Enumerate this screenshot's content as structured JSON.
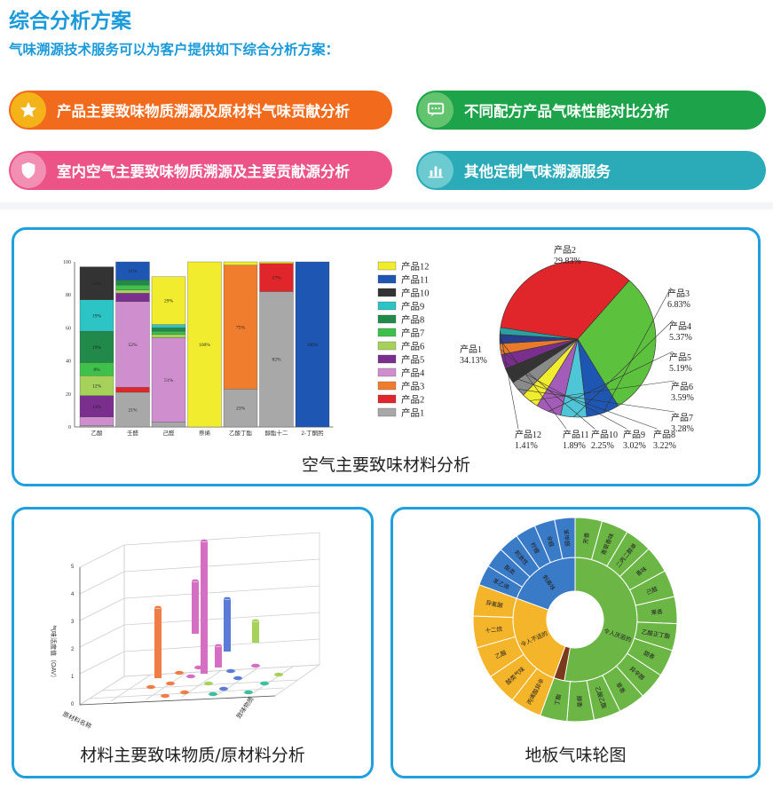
{
  "header": {
    "title": "综合分析方案",
    "subtitle": "气味溯源技术服务可以为客户提供如下综合分析方案："
  },
  "services": [
    {
      "label": "产品主要致味物质溯源及原材料气味贡献分析",
      "icon": "star-icon",
      "color": "#f26a1b",
      "icon_color": "#f5b31a"
    },
    {
      "label": "不同配方产品气味性能对比分析",
      "icon": "chat-icon",
      "color": "#1da34a",
      "icon_color": "#62c46f"
    },
    {
      "label": "室内空气主要致味物质溯源及主要贡献源分析",
      "icon": "shield-icon",
      "color": "#ec5487",
      "icon_color": "#f38fb2"
    },
    {
      "label": "其他定制气味溯源服务",
      "icon": "bar-chart-icon",
      "color": "#2aabb7",
      "icon_color": "#6ccad1"
    }
  ],
  "cards": {
    "air": {
      "caption": "空气主要致味材料分析"
    },
    "material": {
      "caption": "材料主要致味物质/原材料分析"
    },
    "wheel": {
      "caption": "地板气味轮图"
    }
  },
  "chart_data": [
    {
      "type": "bar",
      "stacked": true,
      "categories": [
        "乙酸",
        "壬醛",
        "己醛",
        "萘烯",
        "乙酸丁酯",
        "醇酯十二",
        "2-丁酮肟"
      ],
      "ylim": [
        0,
        100
      ],
      "yticks": [
        "0",
        "20",
        "40",
        "60",
        "80",
        "100"
      ],
      "legend": [
        "产品12",
        "产品11",
        "产品10",
        "产品9",
        "产品8",
        "产品7",
        "产品6",
        "产品5",
        "产品4",
        "产品3",
        "产品2",
        "产品1"
      ],
      "series": [
        {
          "name": "产品1",
          "color": "#a8a8a8",
          "values": [
            1,
            21,
            3,
            0,
            23,
            82,
            0
          ],
          "labels": [
            "",
            "21%",
            "",
            "",
            "23%",
            "82%",
            ""
          ]
        },
        {
          "name": "产品2",
          "color": "#e0262a",
          "values": [
            0,
            3,
            0,
            0,
            0,
            17,
            0
          ],
          "labels": [
            "",
            "",
            "",
            "",
            "",
            "17%",
            ""
          ]
        },
        {
          "name": "产品3",
          "color": "#f07c2e",
          "values": [
            0,
            0,
            0,
            0,
            75,
            0,
            0
          ],
          "labels": [
            "",
            "",
            "",
            "",
            "75%",
            "",
            ""
          ]
        },
        {
          "name": "产品4",
          "color": "#cf8fce",
          "values": [
            5,
            52,
            51,
            0,
            0,
            0,
            0
          ],
          "labels": [
            "",
            "52%",
            "51%",
            "",
            "",
            "",
            ""
          ]
        },
        {
          "name": "产品5",
          "color": "#7a2e8e",
          "values": [
            13,
            5,
            0,
            0,
            0,
            0,
            0
          ],
          "labels": [
            "13%",
            "",
            "",
            "",
            "",
            "",
            ""
          ]
        },
        {
          "name": "产品6",
          "color": "#a6d15a",
          "values": [
            12,
            2,
            2,
            0,
            0,
            0,
            0
          ],
          "labels": [
            "12%",
            "",
            "",
            "",
            "",
            "",
            ""
          ]
        },
        {
          "name": "产品7",
          "color": "#3ec04a",
          "values": [
            8,
            3,
            2,
            0,
            0,
            0,
            0
          ],
          "labels": [
            "8%",
            "",
            "",
            "",
            "",
            "",
            ""
          ]
        },
        {
          "name": "产品8",
          "color": "#218a4a",
          "values": [
            19,
            3,
            2,
            0,
            0,
            0,
            0
          ],
          "labels": [
            "19%",
            "",
            "",
            "",
            "",
            "",
            ""
          ]
        },
        {
          "name": "产品9",
          "color": "#2cc4c4",
          "values": [
            19,
            0,
            2,
            0,
            0,
            0,
            0
          ],
          "labels": [
            "19%",
            "",
            "",
            "",
            "",
            "",
            ""
          ]
        },
        {
          "name": "产品10",
          "color": "#333333",
          "values": [
            20,
            0,
            0,
            0,
            0,
            0,
            0
          ],
          "labels": [
            "20%",
            "",
            "",
            "",
            "",
            "",
            ""
          ]
        },
        {
          "name": "产品11",
          "color": "#1e56b4",
          "values": [
            0,
            11,
            0,
            0,
            0,
            0,
            100
          ],
          "labels": [
            "",
            "11%",
            "",
            "",
            "",
            "",
            "100%"
          ]
        },
        {
          "name": "产品12",
          "color": "#f2ec2e",
          "values": [
            0,
            0,
            29,
            100,
            2,
            1,
            0
          ],
          "labels": [
            "",
            "",
            "29%",
            "100%",
            "",
            "",
            ""
          ]
        }
      ]
    },
    {
      "type": "pie",
      "slices": [
        {
          "name": "产品1",
          "value": 34.13,
          "label": "34.13%",
          "color": "#e0262a"
        },
        {
          "name": "产品2",
          "value": 29.83,
          "label": "29.83%",
          "color": "#5cc13d"
        },
        {
          "name": "产品3",
          "value": 6.83,
          "label": "6.83%",
          "color": "#1e56b4"
        },
        {
          "name": "产品4",
          "value": 5.37,
          "label": "5.37%",
          "color": "#4ec6d8"
        },
        {
          "name": "产品5",
          "value": 5.19,
          "label": "5.19%",
          "color": "#a35cb8"
        },
        {
          "name": "产品6",
          "value": 3.59,
          "label": "3.59%",
          "color": "#f2ec2e"
        },
        {
          "name": "产品7",
          "value": 3.28,
          "label": "3.28%",
          "color": "#8a8a8a"
        },
        {
          "name": "产品8",
          "value": 3.22,
          "label": "3.22%",
          "color": "#343434"
        },
        {
          "name": "产品9",
          "value": 3.02,
          "label": "3.02%",
          "color": "#7a2e8e"
        },
        {
          "name": "产品10",
          "value": 2.25,
          "label": "2.25%",
          "color": "#e87a2a"
        },
        {
          "name": "产品11",
          "value": 1.89,
          "label": "1.89%",
          "color": "#2a3e8a"
        },
        {
          "name": "产品12",
          "value": 1.41,
          "label": "1.41%",
          "color": "#2aa0a0"
        }
      ]
    }
  ],
  "material_chart": {
    "ylabel": "气味活度值（OAV）",
    "yticks": [
      "0",
      "1",
      "2",
      "3",
      "4",
      "5"
    ],
    "xlabel": "致味物质",
    "zlabel": "原材料名称"
  },
  "wheel": {
    "inner": [
      "令人厌恶的味道",
      "刺鼻味",
      "令人不适的味道"
    ],
    "outer_green": [
      "芳香",
      "青草香味",
      "二丙二醇单丁醚",
      "香味",
      "己醛",
      "果香",
      "乙酸正丁酯",
      "甜香",
      "异辛醇",
      "草香",
      "乙酸乙酯",
      "醇香",
      "丁酯"
    ],
    "outer_blue": [
      "苯乙烯",
      "酯类",
      "刺激性",
      "柠檬",
      "辛醛",
      "苯甲醛"
    ],
    "outer_yellow": [
      "丙烯酸异辛酯",
      "酸类气味",
      "乙酸",
      "十二烷",
      "异氰酸"
    ]
  }
}
